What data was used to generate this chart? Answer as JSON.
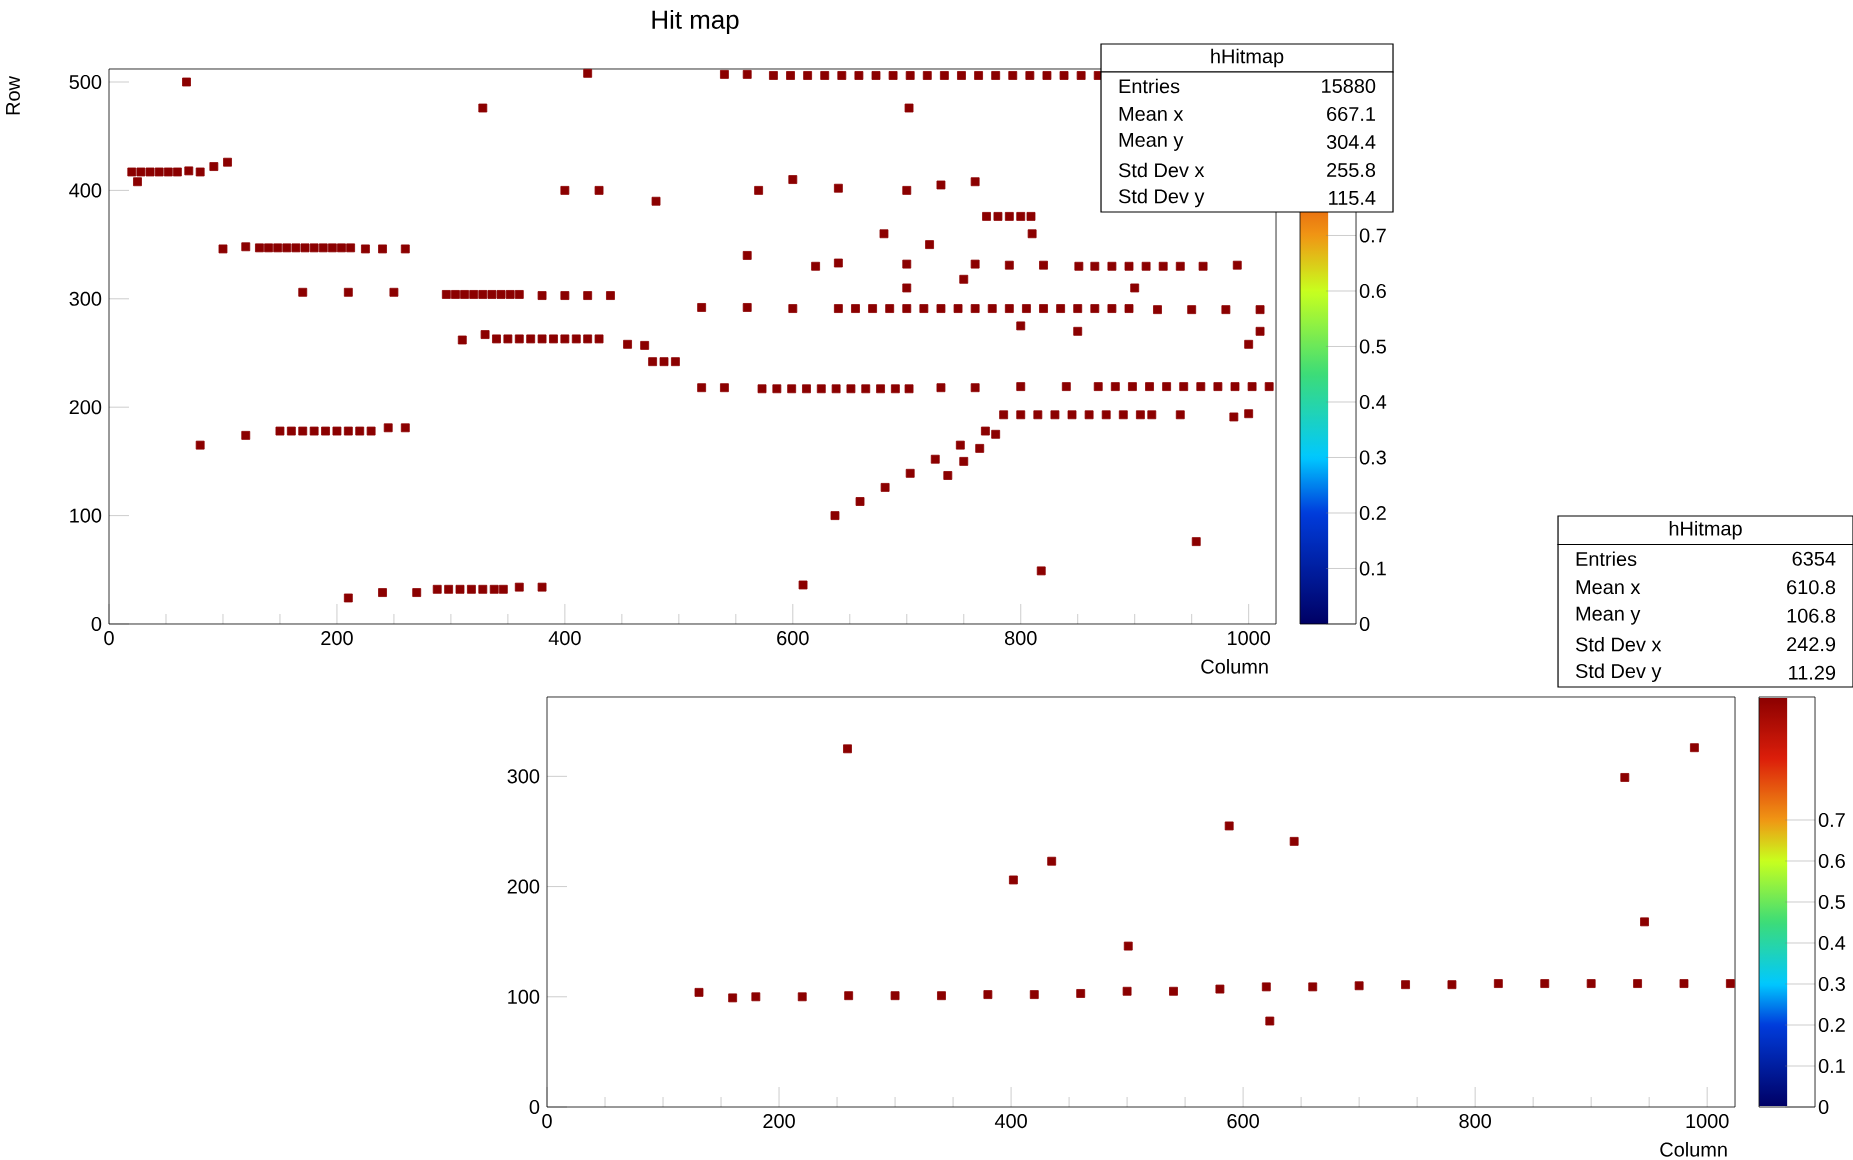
{
  "chart_data": [
    {
      "type": "scatter",
      "title": "Hit map",
      "xlabel": "Column",
      "ylabel": "Row",
      "marker": "square",
      "xlim": [
        0,
        1024
      ],
      "ylim": [
        0,
        512
      ],
      "xticks": [
        0,
        200,
        400,
        600,
        800,
        1000
      ],
      "yticks": [
        0,
        100,
        200,
        300,
        400,
        500
      ],
      "clim": [
        0,
        1
      ],
      "cticks": [
        0,
        0.1,
        0.2,
        0.3,
        0.4,
        0.5,
        0.6,
        0.7
      ],
      "annotations": [
        "hHitmap",
        "Entries",
        "15880",
        "Mean x",
        "667.1",
        "Mean y",
        "304.4",
        "Std Dev x",
        "255.8",
        "Std Dev y",
        "115.4"
      ],
      "series": [
        {
          "color": "#8b0000",
          "x": [
            20,
            28,
            36,
            44,
            52,
            60,
            70,
            80,
            92,
            104,
            25
          ],
          "values": [
            417,
            417,
            417,
            417,
            417,
            417,
            418,
            417,
            422,
            426,
            408
          ]
        },
        {
          "color": "#8b0000",
          "x": [
            100,
            120,
            132,
            140,
            148,
            156,
            164,
            172,
            180,
            188,
            196,
            204,
            212,
            225,
            240,
            260
          ],
          "values": [
            346,
            348,
            347,
            347,
            347,
            347,
            347,
            347,
            347,
            347,
            347,
            347,
            347,
            346,
            346,
            346
          ]
        },
        {
          "color": "#8b0000",
          "x": [
            170,
            210,
            250,
            296,
            304,
            312,
            320,
            328,
            336,
            344,
            352,
            360,
            380,
            400,
            420,
            440
          ],
          "values": [
            306,
            306,
            306,
            304,
            304,
            304,
            304,
            304,
            304,
            304,
            304,
            304,
            303,
            303,
            303,
            303
          ]
        },
        {
          "color": "#8b0000",
          "x": [
            310,
            330,
            340,
            350,
            360,
            370,
            380,
            390,
            400,
            410,
            420,
            430,
            455,
            470,
            477,
            487,
            497
          ],
          "values": [
            262,
            267,
            263,
            263,
            263,
            263,
            263,
            263,
            263,
            263,
            263,
            263,
            258,
            257,
            242,
            242,
            242
          ]
        },
        {
          "color": "#8b0000",
          "x": [
            80,
            120,
            150,
            160,
            170,
            180,
            190,
            200,
            210,
            220,
            230,
            245,
            260
          ],
          "values": [
            165,
            174,
            178,
            178,
            178,
            178,
            178,
            178,
            178,
            178,
            178,
            181,
            181
          ]
        },
        {
          "color": "#8b0000",
          "x": [
            210,
            240,
            270,
            288,
            298,
            308,
            318,
            328,
            338,
            346,
            360,
            380,
            609
          ],
          "values": [
            24,
            29,
            29,
            32,
            32,
            32,
            32,
            32,
            32,
            32,
            34,
            34,
            36
          ]
        },
        {
          "color": "#8b0000",
          "x": [
            68,
            420,
            540,
            560,
            583,
            598,
            613,
            628,
            643,
            658,
            673,
            688,
            703,
            718,
            733,
            748,
            763,
            778,
            793,
            808,
            823,
            838,
            853,
            868
          ],
          "values": [
            500,
            508,
            507,
            507,
            506,
            506,
            506,
            506,
            506,
            506,
            506,
            506,
            506,
            506,
            506,
            506,
            506,
            506,
            506,
            506,
            506,
            506,
            506,
            506
          ]
        },
        {
          "color": "#8b0000",
          "x": [
            520,
            560,
            600,
            640,
            655,
            670,
            685,
            700,
            715,
            730,
            745,
            760,
            775,
            790,
            805,
            820,
            835,
            850,
            865,
            880,
            895,
            920,
            950,
            980,
            1010
          ],
          "values": [
            292,
            292,
            291,
            291,
            291,
            291,
            291,
            291,
            291,
            291,
            291,
            291,
            291,
            291,
            291,
            291,
            291,
            291,
            291,
            291,
            291,
            290,
            290,
            290,
            290
          ]
        },
        {
          "color": "#8b0000",
          "x": [
            640,
            700,
            760,
            790,
            820,
            851,
            865,
            880,
            895,
            910,
            925,
            940,
            960,
            990,
            770,
            780,
            790,
            800,
            809
          ],
          "values": [
            333,
            332,
            332,
            331,
            331,
            330,
            330,
            330,
            330,
            330,
            330,
            330,
            330,
            331,
            376,
            376,
            376,
            376,
            376
          ]
        },
        {
          "color": "#8b0000",
          "x": [
            520,
            540,
            573,
            586,
            599,
            612,
            625,
            638,
            651,
            664,
            677,
            690,
            702,
            730,
            760,
            800,
            840,
            868,
            883,
            898,
            913,
            928,
            943,
            958,
            973,
            988,
            1003,
            1018
          ],
          "values": [
            218,
            218,
            217,
            217,
            217,
            217,
            217,
            217,
            217,
            217,
            217,
            217,
            217,
            218,
            218,
            219,
            219,
            219,
            219,
            219,
            219,
            219,
            219,
            219,
            219,
            219,
            219,
            219
          ]
        },
        {
          "color": "#8b0000",
          "x": [
            785,
            800,
            815,
            830,
            845,
            860,
            875,
            890,
            905,
            915,
            940,
            1000,
            987
          ],
          "values": [
            193,
            193,
            193,
            193,
            193,
            193,
            193,
            193,
            193,
            193,
            193,
            194,
            191
          ]
        },
        {
          "color": "#8b0000",
          "x": [
            637,
            659,
            681,
            703,
            725,
            747,
            769,
            736,
            750,
            764,
            778
          ],
          "values": [
            100,
            113,
            126,
            139,
            152,
            165,
            178,
            137,
            150,
            162,
            175
          ]
        },
        {
          "color": "#8b0000",
          "x": [
            570,
            600,
            640,
            700,
            730,
            760,
            680,
            720,
            810,
            560,
            620,
            700,
            750,
            800,
            850,
            900,
            1000,
            1010,
            400,
            430,
            480,
            954,
            328,
            818,
            702
          ],
          "values": [
            400,
            410,
            402,
            400,
            405,
            408,
            360,
            350,
            360,
            340,
            330,
            310,
            318,
            275,
            270,
            310,
            258,
            270,
            400,
            400,
            390,
            76,
            476,
            49,
            476
          ]
        }
      ]
    },
    {
      "type": "scatter",
      "xlabel": "Column",
      "marker": "square",
      "xlim": [
        0,
        1024
      ],
      "ylim": [
        0,
        372
      ],
      "xticks": [
        0,
        200,
        400,
        600,
        800,
        1000
      ],
      "yticks": [
        0,
        100,
        200,
        300
      ],
      "clim": [
        0,
        1
      ],
      "cticks": [
        0,
        0.1,
        0.2,
        0.3,
        0.4,
        0.5,
        0.6,
        0.7
      ],
      "annotations": [
        "hHitmap",
        "Entries",
        "6354",
        "Mean x",
        "610.8",
        "Mean y",
        "106.8",
        "Std Dev x",
        "242.9",
        "Std Dev y",
        "11.29"
      ],
      "series": [
        {
          "color": "#8b0000",
          "x": [
            180,
            220,
            260,
            300,
            340,
            380,
            420,
            460,
            500,
            540,
            580,
            620,
            660,
            700,
            740,
            780,
            820,
            860,
            900,
            940,
            980,
            1020
          ],
          "values": [
            100,
            100,
            101,
            101,
            101,
            102,
            102,
            103,
            105,
            105,
            107,
            109,
            109,
            110,
            111,
            111,
            112,
            112,
            112,
            112,
            112,
            112
          ]
        },
        {
          "color": "#8b0000",
          "x": [
            131,
            160,
            259,
            929,
            989,
            588,
            644,
            435,
            402,
            501,
            946,
            623
          ],
          "values": [
            104,
            99,
            325,
            299,
            326,
            255,
            241,
            223,
            206,
            146,
            168,
            78
          ]
        }
      ]
    }
  ]
}
